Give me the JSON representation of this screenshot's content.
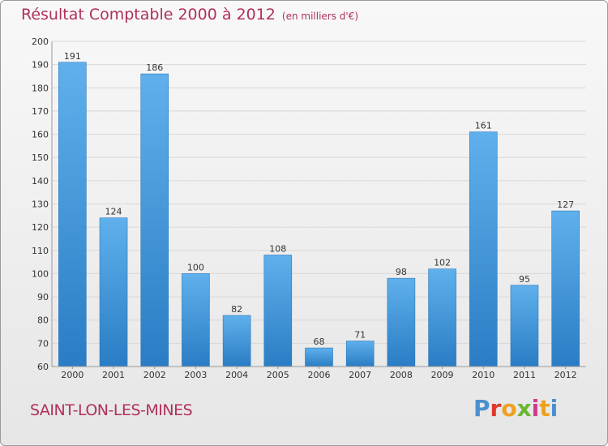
{
  "header": {
    "title": "Résultat Comptable 2000 à 2012",
    "subtitle": "(en milliers d'€)"
  },
  "footer": {
    "place": "SAINT-LON-LES-MINES",
    "logo_letters": [
      "P",
      "r",
      "o",
      "x",
      "i",
      "t",
      "i"
    ],
    "logo_colors": [
      "#4a90d0",
      "#e0372c",
      "#f0a020",
      "#6ab830",
      "#d03a8c",
      "#f0a020",
      "#4a90d0"
    ]
  },
  "chart_data": {
    "type": "bar",
    "title": "Résultat Comptable 2000 à 2012",
    "subtitle": "(en milliers d'€)",
    "categories": [
      "2000",
      "2001",
      "2002",
      "2003",
      "2004",
      "2005",
      "2006",
      "2007",
      "2008",
      "2009",
      "2010",
      "2011",
      "2012"
    ],
    "values": [
      191,
      124,
      186,
      100,
      82,
      108,
      68,
      71,
      98,
      102,
      161,
      95,
      127
    ],
    "value_labels": [
      "191",
      "124",
      "186",
      "100",
      "82",
      "108",
      "68",
      "71",
      "98",
      "102",
      "161",
      "95",
      "127"
    ],
    "yticks": [
      "60",
      "70",
      "80",
      "90",
      "100",
      "110",
      "120",
      "130",
      "140",
      "150",
      "160",
      "170",
      "180",
      "190",
      "200"
    ],
    "ylim": [
      60,
      200
    ],
    "xlabel": "",
    "ylabel": "",
    "grid": true,
    "bar_color": "#3a8fd6"
  }
}
